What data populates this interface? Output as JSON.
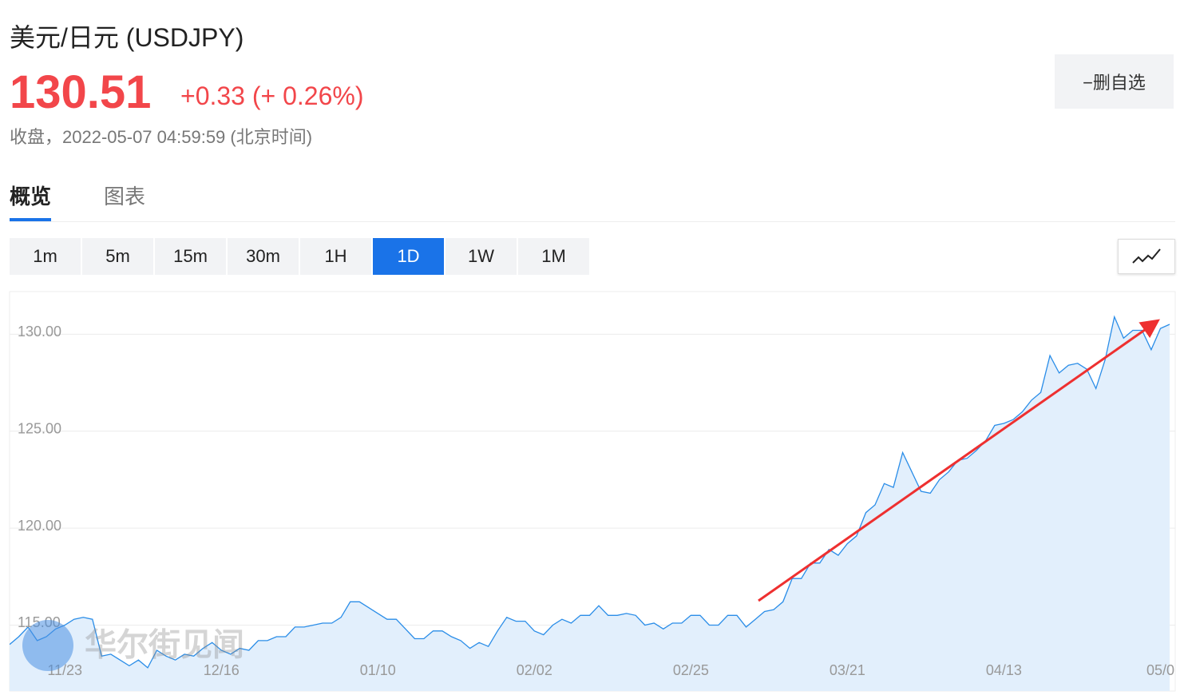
{
  "header": {
    "title": "美元/日元 (USDJPY)",
    "price": "130.51",
    "change": "+0.33 (+ 0.26%)",
    "status": "收盘，2022-05-07 04:59:59 (北京时间)",
    "watchlist_button": "−删自选"
  },
  "tabs": [
    "概览",
    "图表"
  ],
  "periods": [
    "1m",
    "5m",
    "15m",
    "30m",
    "1H",
    "1D",
    "1W",
    "1M"
  ],
  "active_period": 5,
  "watermark": "华尔街见闻",
  "chart_data": {
    "type": "area",
    "categories": [
      null,
      null,
      null,
      null,
      null,
      null,
      "11/23",
      null,
      null,
      null,
      null,
      null,
      null,
      null,
      null,
      null,
      null,
      null,
      null,
      null,
      null,
      null,
      null,
      "12/16",
      null,
      null,
      null,
      null,
      null,
      null,
      null,
      null,
      null,
      null,
      null,
      null,
      null,
      null,
      null,
      null,
      "01/10",
      null,
      null,
      null,
      null,
      null,
      null,
      null,
      null,
      null,
      null,
      null,
      null,
      null,
      null,
      null,
      null,
      "02/02",
      null,
      null,
      null,
      null,
      null,
      null,
      null,
      null,
      null,
      null,
      null,
      null,
      null,
      null,
      null,
      null,
      "02/25",
      null,
      null,
      null,
      null,
      null,
      null,
      null,
      null,
      null,
      null,
      null,
      null,
      null,
      null,
      null,
      null,
      "03/21",
      null,
      null,
      null,
      null,
      null,
      null,
      null,
      null,
      null,
      null,
      null,
      null,
      null,
      null,
      null,
      null,
      "04/13",
      null,
      null,
      null,
      null,
      null,
      null,
      null,
      null,
      null,
      null,
      null,
      null,
      null,
      null,
      null,
      null,
      "05/0",
      null
    ],
    "values": [
      114.0,
      114.4,
      114.9,
      114.2,
      114.4,
      114.8,
      115.0,
      115.3,
      115.4,
      115.3,
      113.4,
      113.5,
      113.2,
      112.9,
      113.2,
      112.8,
      113.7,
      113.4,
      113.2,
      113.5,
      113.4,
      113.8,
      114.1,
      113.7,
      113.5,
      113.8,
      113.7,
      114.2,
      114.2,
      114.4,
      114.4,
      114.9,
      114.9,
      115.0,
      115.1,
      115.1,
      115.4,
      116.2,
      116.2,
      115.9,
      115.6,
      115.3,
      115.3,
      114.8,
      114.3,
      114.3,
      114.7,
      114.7,
      114.4,
      114.2,
      113.8,
      114.1,
      113.9,
      114.7,
      115.4,
      115.2,
      115.2,
      114.7,
      114.5,
      115.0,
      115.3,
      115.1,
      115.5,
      115.5,
      116.0,
      115.5,
      115.5,
      115.6,
      115.5,
      115.0,
      115.1,
      114.8,
      115.1,
      115.1,
      115.5,
      115.5,
      115.0,
      115.0,
      115.5,
      115.5,
      114.9,
      115.3,
      115.7,
      115.8,
      116.2,
      117.4,
      117.4,
      118.2,
      118.2,
      118.9,
      118.6,
      119.2,
      119.6,
      120.8,
      121.2,
      122.3,
      122.1,
      123.9,
      122.9,
      121.9,
      121.8,
      122.5,
      122.9,
      123.5,
      123.6,
      124.0,
      124.5,
      125.3,
      125.4,
      125.6,
      126.0,
      126.6,
      127.0,
      128.9,
      128.0,
      128.4,
      128.5,
      128.2,
      127.2,
      128.7,
      130.9,
      129.8,
      130.2,
      130.2,
      129.2,
      130.3,
      130.51
    ],
    "color": "#2a8de8",
    "area_color": "#e2effc",
    "ylim": [
      111.6,
      132.2
    ],
    "yticks": [
      {
        "value": 115,
        "label": "115.00"
      },
      {
        "value": 120,
        "label": "120.00"
      },
      {
        "value": 125,
        "label": "125.00"
      },
      {
        "value": 130,
        "label": "130.00"
      }
    ],
    "grid": true
  }
}
